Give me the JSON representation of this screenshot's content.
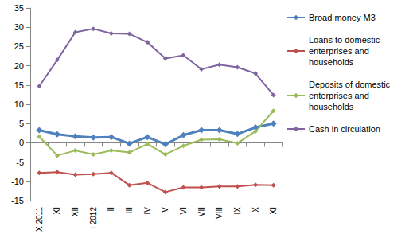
{
  "chart_data": {
    "type": "line",
    "categories": [
      "X 2011",
      "XI",
      "XII",
      "I 2012",
      "II",
      "III",
      "IV",
      "V",
      "VI",
      "VII",
      "VIII",
      "IX",
      "X",
      "XI"
    ],
    "series": [
      {
        "name": "Broad money M3",
        "color": "#4f81bd",
        "marker": "diamond",
        "values": [
          3.3,
          2.2,
          1.7,
          1.4,
          1.5,
          -0.2,
          1.5,
          -0.4,
          2.0,
          3.3,
          3.3,
          2.3,
          4.0,
          5.0
        ]
      },
      {
        "name": "Loans to domestic enterprises and households",
        "color": "#c0504d",
        "marker": "diamond",
        "values": [
          -7.8,
          -7.6,
          -8.3,
          -8.1,
          -7.8,
          -11.0,
          -10.4,
          -12.8,
          -11.6,
          -11.6,
          -11.3,
          -11.3,
          -10.9,
          -11.0
        ]
      },
      {
        "name": "Deposits of domestic enterprises and households",
        "color": "#9bbb59",
        "marker": "diamond",
        "values": [
          1.6,
          -3.3,
          -2.0,
          -3.0,
          -2.0,
          -2.5,
          -0.3,
          -3.0,
          -0.8,
          0.8,
          0.9,
          -0.1,
          3.0,
          8.3
        ]
      },
      {
        "name": "Cash in circulation",
        "color": "#8064a2",
        "marker": "diamond",
        "values": [
          14.7,
          21.5,
          28.7,
          29.6,
          28.4,
          28.3,
          26.1,
          21.9,
          22.7,
          19.1,
          20.3,
          19.6,
          18.0,
          12.4
        ]
      }
    ],
    "ylim": [
      -15,
      35
    ],
    "yticks": [
      -15,
      -10,
      -5,
      0,
      5,
      10,
      15,
      20,
      25,
      30,
      35
    ],
    "grid": false,
    "legend": "right"
  }
}
